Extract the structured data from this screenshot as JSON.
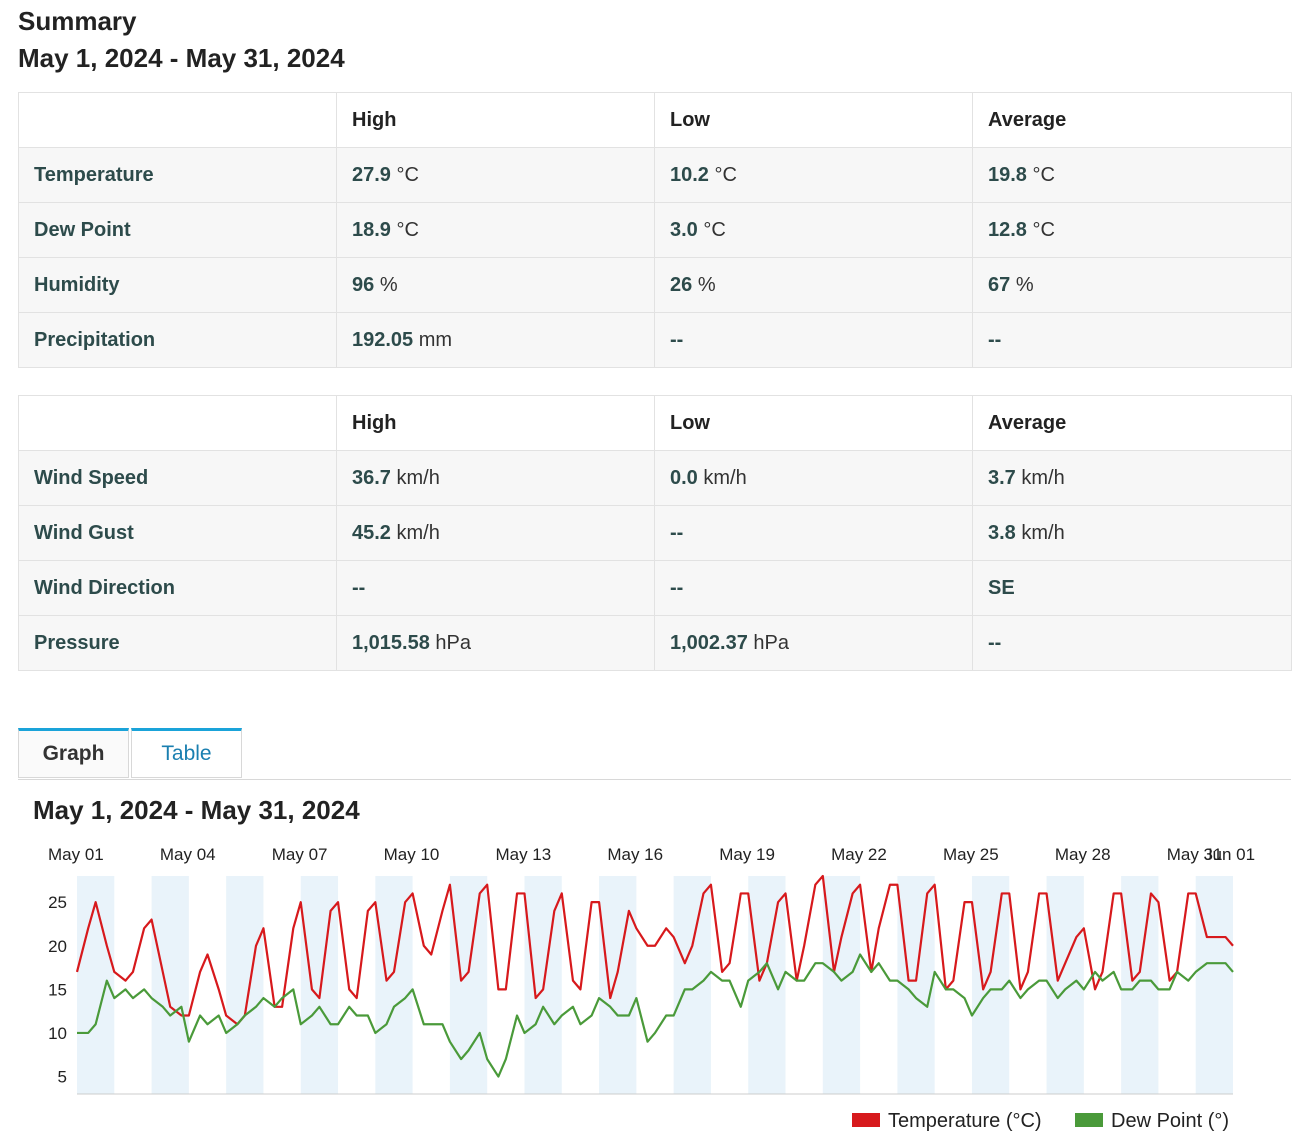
{
  "summary": {
    "title": "Summary",
    "date_range": "May 1, 2024 - May 31, 2024"
  },
  "table1": {
    "headers": [
      "",
      "High",
      "Low",
      "Average"
    ],
    "rows": [
      {
        "label": "Temperature",
        "high": "27.9",
        "high_unit": "°C",
        "low": "10.2",
        "low_unit": "°C",
        "avg": "19.8",
        "avg_unit": "°C"
      },
      {
        "label": "Dew Point",
        "high": "18.9",
        "high_unit": "°C",
        "low": "3.0",
        "low_unit": "°C",
        "avg": "12.8",
        "avg_unit": "°C"
      },
      {
        "label": "Humidity",
        "high": "96",
        "high_unit": "%",
        "low": "26",
        "low_unit": "%",
        "avg": "67",
        "avg_unit": "%"
      },
      {
        "label": "Precipitation",
        "high": "192.05",
        "high_unit": "mm",
        "low": "--",
        "low_unit": "",
        "avg": "--",
        "avg_unit": ""
      }
    ]
  },
  "table2": {
    "headers": [
      "",
      "High",
      "Low",
      "Average"
    ],
    "rows": [
      {
        "label": "Wind Speed",
        "high": "36.7",
        "high_unit": "km/h",
        "low": "0.0",
        "low_unit": "km/h",
        "avg": "3.7",
        "avg_unit": "km/h"
      },
      {
        "label": "Wind Gust",
        "high": "45.2",
        "high_unit": "km/h",
        "low": "--",
        "low_unit": "",
        "avg": "3.8",
        "avg_unit": "km/h"
      },
      {
        "label": "Wind Direction",
        "high": "--",
        "high_unit": "",
        "low": "--",
        "low_unit": "",
        "avg": "SE",
        "avg_unit": ""
      },
      {
        "label": "Pressure",
        "high": "1,015.58",
        "high_unit": "hPa",
        "low": "1,002.37",
        "low_unit": "hPa",
        "avg": "--",
        "avg_unit": ""
      }
    ]
  },
  "tabs": [
    {
      "label": "Graph",
      "active": true
    },
    {
      "label": "Table",
      "active": false
    }
  ],
  "chart_title": "May 1, 2024 - May 31, 2024",
  "colors": {
    "temperature": "#d7191c",
    "dew_point": "#4a9a3a",
    "day_band": "#e9f3fa",
    "tab_accent": "#1aa3d9",
    "tab_link": "#1a7fb0"
  },
  "chart_data": {
    "type": "line",
    "title": "May 1, 2024 - May 31, 2024",
    "x_tick_labels": [
      "May 01",
      "May 04",
      "May 07",
      "May 10",
      "May 13",
      "May 16",
      "May 19",
      "May 22",
      "May 25",
      "May 28",
      "May 31",
      "Jun 01"
    ],
    "y_ticks": [
      5,
      10,
      15,
      20,
      25
    ],
    "ylim": [
      3,
      28
    ],
    "xlim": [
      "2024-05-01",
      "2024-06-01"
    ],
    "grid": false,
    "legend_position": "bottom-right",
    "series": [
      {
        "name": "Temperature (°C)",
        "color": "#d7191c",
        "x_days": [
          0,
          0.3,
          0.5,
          0.8,
          1.0,
          1.3,
          1.5,
          1.8,
          2.0,
          2.3,
          2.5,
          2.8,
          3.0,
          3.3,
          3.5,
          3.8,
          4.0,
          4.3,
          4.5,
          4.8,
          5.0,
          5.3,
          5.5,
          5.8,
          6.0,
          6.3,
          6.5,
          6.8,
          7.0,
          7.3,
          7.5,
          7.8,
          8.0,
          8.3,
          8.5,
          8.8,
          9.0,
          9.3,
          9.5,
          9.8,
          10.0,
          10.3,
          10.5,
          10.8,
          11.0,
          11.3,
          11.5,
          11.8,
          12.0,
          12.3,
          12.5,
          12.8,
          13.0,
          13.3,
          13.5,
          13.8,
          14.0,
          14.3,
          14.5,
          14.8,
          15.0,
          15.3,
          15.5,
          15.8,
          16.0,
          16.3,
          16.5,
          16.8,
          17.0,
          17.3,
          17.5,
          17.8,
          18.0,
          18.3,
          18.5,
          18.8,
          19.0,
          19.3,
          19.5,
          19.8,
          20.0,
          20.3,
          20.5,
          20.8,
          21.0,
          21.3,
          21.5,
          21.8,
          22.0,
          22.3,
          22.5,
          22.8,
          23.0,
          23.3,
          23.5,
          23.8,
          24.0,
          24.3,
          24.5,
          24.8,
          25.0,
          25.3,
          25.5,
          25.8,
          26.0,
          26.3,
          26.5,
          26.8,
          27.0,
          27.3,
          27.5,
          27.8,
          28.0,
          28.3,
          28.5,
          28.8,
          29.0,
          29.3,
          29.5,
          29.8,
          30.0,
          30.3,
          30.5,
          30.8,
          31.0
        ],
        "values": [
          17,
          22,
          25,
          20,
          17,
          16,
          17,
          22,
          23,
          17,
          13,
          12,
          12,
          17,
          19,
          15,
          12,
          11,
          12,
          20,
          22,
          13,
          13,
          22,
          25,
          15,
          14,
          24,
          25,
          15,
          14,
          24,
          25,
          16,
          17,
          25,
          26,
          20,
          19,
          24,
          27,
          16,
          17,
          26,
          27,
          15,
          15,
          26,
          26,
          14,
          15,
          24,
          26,
          16,
          15,
          25,
          25,
          14,
          17,
          24,
          22,
          20,
          20,
          22,
          21,
          18,
          20,
          26,
          27,
          17,
          18,
          26,
          26,
          16,
          18,
          25,
          26,
          16,
          20,
          27,
          28,
          17,
          21,
          26,
          27,
          17,
          22,
          27,
          27,
          16,
          16,
          26,
          27,
          15,
          16,
          25,
          25,
          15,
          17,
          26,
          26,
          15,
          17,
          26,
          26,
          16,
          18,
          21,
          22,
          15,
          17,
          26,
          26,
          16,
          17,
          26,
          25,
          16,
          17,
          26,
          26,
          21,
          21,
          21,
          20
        ]
      },
      {
        "name": "Dew Point (°)",
        "color": "#4a9a3a",
        "x_days": [
          0,
          0.3,
          0.5,
          0.8,
          1.0,
          1.3,
          1.5,
          1.8,
          2.0,
          2.3,
          2.5,
          2.8,
          3.0,
          3.3,
          3.5,
          3.8,
          4.0,
          4.3,
          4.5,
          4.8,
          5.0,
          5.3,
          5.5,
          5.8,
          6.0,
          6.3,
          6.5,
          6.8,
          7.0,
          7.3,
          7.5,
          7.8,
          8.0,
          8.3,
          8.5,
          8.8,
          9.0,
          9.3,
          9.5,
          9.8,
          10.0,
          10.3,
          10.5,
          10.8,
          11.0,
          11.3,
          11.5,
          11.8,
          12.0,
          12.3,
          12.5,
          12.8,
          13.0,
          13.3,
          13.5,
          13.8,
          14.0,
          14.3,
          14.5,
          14.8,
          15.0,
          15.3,
          15.5,
          15.8,
          16.0,
          16.3,
          16.5,
          16.8,
          17.0,
          17.3,
          17.5,
          17.8,
          18.0,
          18.3,
          18.5,
          18.8,
          19.0,
          19.3,
          19.5,
          19.8,
          20.0,
          20.3,
          20.5,
          20.8,
          21.0,
          21.3,
          21.5,
          21.8,
          22.0,
          22.3,
          22.5,
          22.8,
          23.0,
          23.3,
          23.5,
          23.8,
          24.0,
          24.3,
          24.5,
          24.8,
          25.0,
          25.3,
          25.5,
          25.8,
          26.0,
          26.3,
          26.5,
          26.8,
          27.0,
          27.3,
          27.5,
          27.8,
          28.0,
          28.3,
          28.5,
          28.8,
          29.0,
          29.3,
          29.5,
          29.8,
          30.0,
          30.3,
          30.5,
          30.8,
          31.0
        ],
        "values": [
          10,
          10,
          11,
          16,
          14,
          15,
          14,
          15,
          14,
          13,
          12,
          13,
          9,
          12,
          11,
          12,
          10,
          11,
          12,
          13,
          14,
          13,
          14,
          15,
          11,
          12,
          13,
          11,
          11,
          13,
          12,
          12,
          10,
          11,
          13,
          14,
          15,
          11,
          11,
          11,
          9,
          7,
          8,
          10,
          7,
          5,
          7,
          12,
          10,
          11,
          13,
          11,
          12,
          13,
          11,
          12,
          14,
          13,
          12,
          12,
          14,
          9,
          10,
          12,
          12,
          15,
          15,
          16,
          17,
          16,
          16,
          13,
          16,
          17,
          18,
          15,
          17,
          16,
          16,
          18,
          18,
          17,
          16,
          17,
          19,
          17,
          18,
          16,
          16,
          15,
          14,
          13,
          17,
          15,
          15,
          14,
          12,
          14,
          15,
          15,
          16,
          14,
          15,
          16,
          16,
          14,
          15,
          16,
          15,
          17,
          16,
          17,
          15,
          15,
          16,
          16,
          15,
          15,
          17,
          16,
          17,
          18,
          18,
          18,
          17
        ]
      }
    ]
  }
}
